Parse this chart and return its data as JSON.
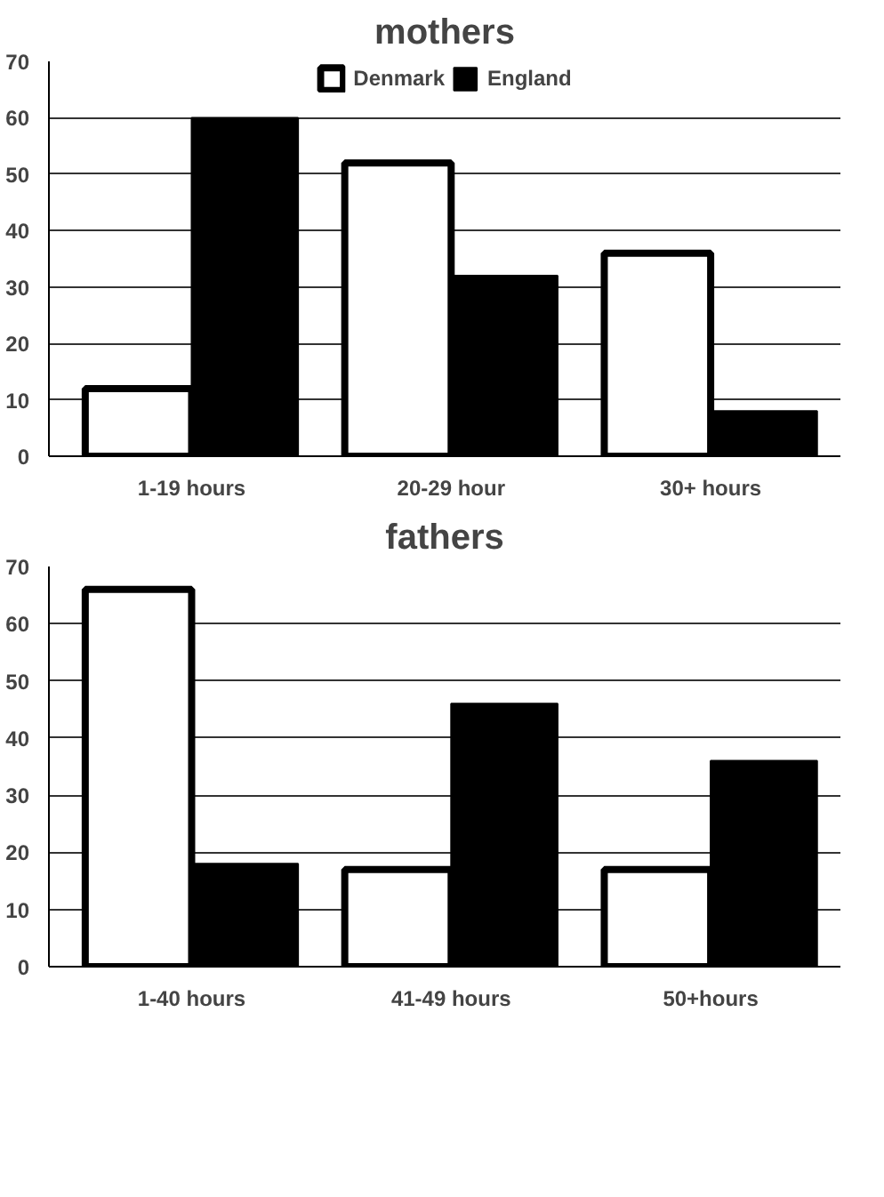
{
  "chart_data": [
    {
      "type": "bar",
      "title": "mothers",
      "categories": [
        "1-19 hours",
        "20-29 hour",
        "30+ hours"
      ],
      "series": [
        {
          "name": "Denmark",
          "color": "#ffffff",
          "values": [
            12,
            52,
            36
          ]
        },
        {
          "name": "England",
          "color": "#000000",
          "values": [
            60,
            32,
            8
          ]
        }
      ],
      "ylim": [
        0,
        70
      ],
      "yticks": [
        0,
        10,
        20,
        30,
        40,
        50,
        60,
        70
      ],
      "grid": "y",
      "legend": "top"
    },
    {
      "type": "bar",
      "title": "fathers",
      "categories": [
        "1-40 hours",
        "41-49 hours",
        "50+hours"
      ],
      "series": [
        {
          "color": "#ffffff",
          "values": [
            66,
            17,
            17
          ]
        },
        {
          "color": "#000000",
          "values": [
            18,
            46,
            36
          ]
        }
      ],
      "ylim": [
        0,
        70
      ],
      "yticks": [
        0,
        10,
        20,
        30,
        40,
        50,
        60,
        70
      ],
      "grid": "y"
    }
  ]
}
